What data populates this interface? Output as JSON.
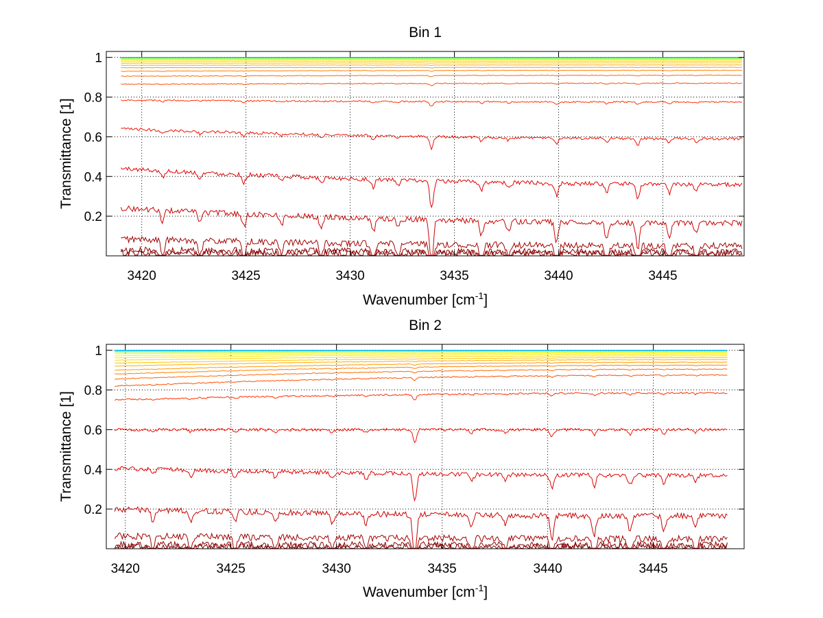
{
  "chart_data": [
    {
      "type": "line",
      "title": "Bin 1",
      "xlabel": "Wavenumber [cm",
      "xlabel_superscript": "-1",
      "xlabel_suffix": "]",
      "ylabel": "Transmittance [1]",
      "xlim": [
        3418.3,
        3448.9
      ],
      "ylim": [
        0.0,
        1.03
      ],
      "x_data_range": [
        3419.0,
        3448.8
      ],
      "xticks": [
        3420,
        3425,
        3430,
        3435,
        3440,
        3445
      ],
      "xtick_labels": [
        "3420",
        "3425",
        "3430",
        "3435",
        "3440",
        "3445"
      ],
      "yticks": [
        0.2,
        0.4,
        0.6,
        0.8,
        1.0
      ],
      "ytick_labels": [
        "0.2",
        "0.4",
        "0.6",
        "0.8",
        "1"
      ],
      "grid": true,
      "colormap": "jet",
      "absorption_lines": [
        {
          "x": 3421.0,
          "depth": 0.25
        },
        {
          "x": 3422.8,
          "depth": 0.22
        },
        {
          "x": 3424.9,
          "depth": 0.28
        },
        {
          "x": 3426.7,
          "depth": 0.2
        },
        {
          "x": 3428.6,
          "depth": 0.22
        },
        {
          "x": 3431.1,
          "depth": 0.3
        },
        {
          "x": 3432.3,
          "depth": 0.2
        },
        {
          "x": 3433.9,
          "depth": 1.0
        },
        {
          "x": 3436.3,
          "depth": 0.3
        },
        {
          "x": 3437.6,
          "depth": 0.22
        },
        {
          "x": 3439.9,
          "depth": 0.45
        },
        {
          "x": 3442.3,
          "depth": 0.35
        },
        {
          "x": 3443.8,
          "depth": 0.55
        },
        {
          "x": 3445.3,
          "depth": 0.32
        },
        {
          "x": 3446.6,
          "depth": 0.25
        }
      ],
      "series": [
        {
          "start": 0.015,
          "end": 0.012,
          "color": "#800000"
        },
        {
          "start": 0.028,
          "end": 0.02,
          "color": "#8c0000"
        },
        {
          "start": 0.085,
          "end": 0.05,
          "color": "#a00000"
        },
        {
          "start": 0.24,
          "end": 0.165,
          "color": "#c80000"
        },
        {
          "start": 0.44,
          "end": 0.36,
          "color": "#e00000"
        },
        {
          "start": 0.64,
          "end": 0.59,
          "color": "#f01000"
        },
        {
          "start": 0.785,
          "end": 0.775,
          "color": "#ff3000"
        },
        {
          "start": 0.865,
          "end": 0.87,
          "color": "#ff5000"
        },
        {
          "start": 0.905,
          "end": 0.91,
          "color": "#ff6a00"
        },
        {
          "start": 0.93,
          "end": 0.935,
          "color": "#ff8000"
        },
        {
          "start": 0.948,
          "end": 0.95,
          "color": "#ff9800"
        },
        {
          "start": 0.96,
          "end": 0.962,
          "color": "#ffae00"
        },
        {
          "start": 0.97,
          "end": 0.972,
          "color": "#ffc400"
        },
        {
          "start": 0.978,
          "end": 0.98,
          "color": "#ffd800"
        },
        {
          "start": 0.985,
          "end": 0.986,
          "color": "#ffe800"
        },
        {
          "start": 0.99,
          "end": 0.99,
          "color": "#f4f400"
        },
        {
          "start": 0.993,
          "end": 0.993,
          "color": "#d8ff20"
        },
        {
          "start": 0.995,
          "end": 0.995,
          "color": "#aaff50"
        },
        {
          "start": 0.997,
          "end": 0.997,
          "color": "#70ff90"
        },
        {
          "start": 0.998,
          "end": 0.998,
          "color": "#30ffd0"
        },
        {
          "start": 0.999,
          "end": 0.999,
          "color": "#00e0ff"
        },
        {
          "start": 0.9995,
          "end": 0.9995,
          "color": "#00a0ff"
        }
      ]
    },
    {
      "type": "line",
      "title": "Bin 2",
      "xlabel": "Wavenumber [cm",
      "xlabel_superscript": "-1",
      "xlabel_suffix": "]",
      "ylabel": "Transmittance [1]",
      "xlim": [
        3419.1,
        3449.3
      ],
      "ylim": [
        0.0,
        1.03
      ],
      "x_data_range": [
        3419.5,
        3448.5
      ],
      "xticks": [
        3420,
        3425,
        3430,
        3435,
        3440,
        3445
      ],
      "xtick_labels": [
        "3420",
        "3425",
        "3430",
        "3435",
        "3440",
        "3445"
      ],
      "yticks": [
        0.2,
        0.4,
        0.6,
        0.8,
        1.0
      ],
      "ytick_labels": [
        "0.2",
        "0.4",
        "0.6",
        "0.8",
        "1"
      ],
      "grid": true,
      "colormap": "jet",
      "absorption_lines": [
        {
          "x": 3421.3,
          "depth": 0.22
        },
        {
          "x": 3423.1,
          "depth": 0.2
        },
        {
          "x": 3425.2,
          "depth": 0.22
        },
        {
          "x": 3427.1,
          "depth": 0.2
        },
        {
          "x": 3429.8,
          "depth": 0.22
        },
        {
          "x": 3431.4,
          "depth": 0.2
        },
        {
          "x": 3433.7,
          "depth": 1.0
        },
        {
          "x": 3436.4,
          "depth": 0.25
        },
        {
          "x": 3438.0,
          "depth": 0.2
        },
        {
          "x": 3440.2,
          "depth": 0.5
        },
        {
          "x": 3442.2,
          "depth": 0.4
        },
        {
          "x": 3443.9,
          "depth": 0.35
        },
        {
          "x": 3445.5,
          "depth": 0.3
        },
        {
          "x": 3447.0,
          "depth": 0.25
        }
      ],
      "series": [
        {
          "start": 0.01,
          "end": 0.008,
          "color": "#800000"
        },
        {
          "start": 0.02,
          "end": 0.018,
          "color": "#8c0000"
        },
        {
          "start": 0.065,
          "end": 0.05,
          "color": "#a00000"
        },
        {
          "start": 0.2,
          "end": 0.165,
          "color": "#c80000"
        },
        {
          "start": 0.405,
          "end": 0.37,
          "color": "#e00000"
        },
        {
          "start": 0.6,
          "end": 0.6,
          "color": "#f01000"
        },
        {
          "start": 0.75,
          "end": 0.785,
          "color": "#ff3000"
        },
        {
          "start": 0.82,
          "end": 0.875,
          "color": "#ff5000"
        },
        {
          "start": 0.855,
          "end": 0.905,
          "color": "#ff6a00"
        },
        {
          "start": 0.88,
          "end": 0.925,
          "color": "#ff8000"
        },
        {
          "start": 0.9,
          "end": 0.94,
          "color": "#ff9800"
        },
        {
          "start": 0.92,
          "end": 0.953,
          "color": "#ffae00"
        },
        {
          "start": 0.935,
          "end": 0.963,
          "color": "#ffc400"
        },
        {
          "start": 0.95,
          "end": 0.972,
          "color": "#ffd800"
        },
        {
          "start": 0.962,
          "end": 0.98,
          "color": "#ffe800"
        },
        {
          "start": 0.972,
          "end": 0.986,
          "color": "#f4f400"
        },
        {
          "start": 0.982,
          "end": 0.991,
          "color": "#d8ff20"
        },
        {
          "start": 0.989,
          "end": 0.995,
          "color": "#aaff50"
        },
        {
          "start": 0.994,
          "end": 0.997,
          "color": "#70ff90"
        },
        {
          "start": 0.997,
          "end": 0.998,
          "color": "#30ffd0"
        },
        {
          "start": 0.999,
          "end": 0.999,
          "color": "#00e0ff"
        },
        {
          "start": 0.9995,
          "end": 0.9995,
          "color": "#00a0ff"
        }
      ]
    }
  ]
}
